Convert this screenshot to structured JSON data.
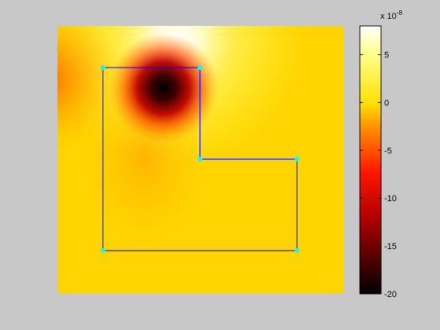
{
  "figure": {
    "background": "#c8c8c8"
  },
  "chart_data": {
    "type": "heatmap",
    "title": "",
    "xlabel": "",
    "ylabel": "",
    "colormap": "hot",
    "colorbar": {
      "range": [
        -20,
        8
      ],
      "ticks": [
        5,
        0,
        -5,
        -10,
        -15,
        -20
      ],
      "tick_labels": [
        "5",
        "0",
        "-5",
        "-10",
        "-15",
        "-20"
      ],
      "exponent_label": "x 10",
      "exponent_power": "-8",
      "location": "right"
    },
    "polygon": {
      "color": "#0000ff",
      "vertex_color": "#00ffff",
      "vertices": [
        [
          0,
          0
        ],
        [
          0,
          2
        ],
        [
          1,
          2
        ],
        [
          1,
          1
        ],
        [
          2,
          1
        ],
        [
          2,
          0
        ]
      ]
    },
    "axes_visible": false
  }
}
